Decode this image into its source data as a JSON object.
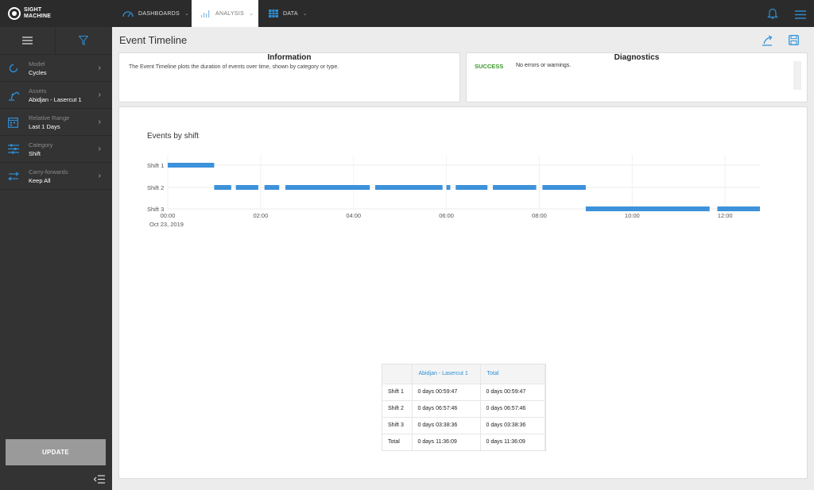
{
  "app": {
    "logo_line1": "SIGHT",
    "logo_line2": "MACHINE"
  },
  "nav": {
    "tabs": [
      {
        "label": "DASHBOARDS"
      },
      {
        "label": "ANALYSIS"
      },
      {
        "label": "DATA"
      }
    ]
  },
  "sidebar": {
    "items": [
      {
        "label": "Model",
        "value": "Cycles",
        "icon": "refresh-icon"
      },
      {
        "label": "Assets",
        "value": "Abidjan - Lasercut 1",
        "icon": "robot-arm-icon"
      },
      {
        "label": "Relative Range",
        "value": "Last 1 Days",
        "icon": "calendar-icon"
      },
      {
        "label": "Category",
        "value": "Shift",
        "icon": "sliders-icon"
      },
      {
        "label": "Carry-forwards",
        "value": "Keep All",
        "icon": "transfer-icon"
      }
    ],
    "update_label": "UPDATE"
  },
  "page": {
    "title": "Event Timeline"
  },
  "information": {
    "title": "Information",
    "text": "The Event Timeline plots the duration of events over time, shown by category or type."
  },
  "diagnostics": {
    "title": "Diagnostics",
    "status": "SUCCESS",
    "message": "No errors or warnings."
  },
  "chart_data": {
    "type": "timeline",
    "title": "Events by shift",
    "categories": [
      "Shift 1",
      "Shift 2",
      "Shift 3"
    ],
    "x_ticks": [
      "00:00",
      "02:00",
      "04:00",
      "06:00",
      "08:00",
      "10:00",
      "12:00"
    ],
    "x_date_label": "Oct 23, 2019",
    "xlim": [
      "00:00",
      "12:45"
    ],
    "grid": true,
    "bar_color": "#3d92da",
    "events": [
      {
        "category": "Shift 1",
        "start": "00:00",
        "end": "01:00"
      },
      {
        "category": "Shift 2",
        "start": "01:00",
        "end": "01:22"
      },
      {
        "category": "Shift 2",
        "start": "01:28",
        "end": "01:57"
      },
      {
        "category": "Shift 2",
        "start": "02:05",
        "end": "02:24"
      },
      {
        "category": "Shift 2",
        "start": "02:32",
        "end": "04:21"
      },
      {
        "category": "Shift 2",
        "start": "04:28",
        "end": "05:55"
      },
      {
        "category": "Shift 2",
        "start": "06:00",
        "end": "06:05"
      },
      {
        "category": "Shift 2",
        "start": "06:12",
        "end": "06:53"
      },
      {
        "category": "Shift 2",
        "start": "07:00",
        "end": "07:56"
      },
      {
        "category": "Shift 2",
        "start": "08:04",
        "end": "09:00"
      },
      {
        "category": "Shift 3",
        "start": "09:00",
        "end": "11:40"
      },
      {
        "category": "Shift 3",
        "start": "11:50",
        "end": "12:45"
      }
    ]
  },
  "table": {
    "headers": [
      "",
      "Abidjan - Lasercut 1",
      "Total"
    ],
    "rows": [
      [
        "Shift 1",
        "0 days 00:59:47",
        "0 days 00:59:47"
      ],
      [
        "Shift 2",
        "0 days 06:57:46",
        "0 days 06:57:46"
      ],
      [
        "Shift 3",
        "0 days 03:38:36",
        "0 days 03:38:36"
      ],
      [
        "Total",
        "0 days 11:36:09",
        "0 days 11:36:09"
      ]
    ]
  }
}
